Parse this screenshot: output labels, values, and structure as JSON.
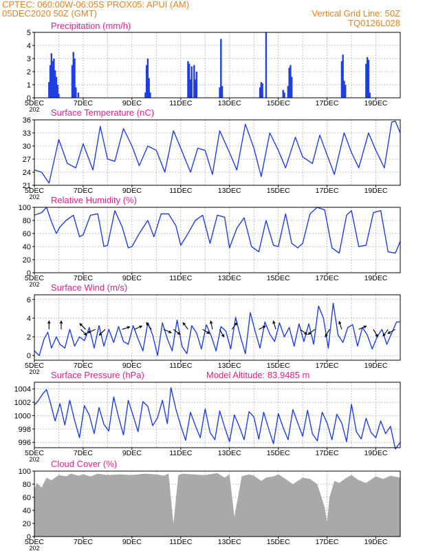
{
  "header": {
    "line1_left": "CPTEC:   060:00W-06:05S   PROX05: APUI (AM)",
    "line2_left": "05DEC2020 50Z (GMT)",
    "line2_right": "Vertical Grid Line: 50Z",
    "line3_right": "TQ0126L028"
  },
  "x_axis": {
    "tick_labels": [
      "5DEC",
      "7DEC",
      "9DEC",
      "11DEC",
      "13DEC",
      "15DEC",
      "17DEC",
      "19DEC"
    ],
    "range_days": [
      5,
      20
    ],
    "year_fragment": "202"
  },
  "colors": {
    "title": "#e0208c",
    "header": "#e8821e",
    "series": "#1f3fe0",
    "cloud": "#a9a9a9",
    "arrow": "#000000"
  },
  "chart_data": [
    {
      "type": "bar",
      "title": "Precipitation (mm/h)",
      "ylim": [
        0,
        5
      ],
      "yticks": [
        0,
        1,
        2,
        3,
        4,
        5
      ],
      "x": [
        5.6,
        5.65,
        5.7,
        5.75,
        5.8,
        5.85,
        5.9,
        5.95,
        6.0,
        6.55,
        6.6,
        6.65,
        6.7,
        6.8,
        9.55,
        9.6,
        9.65,
        9.7,
        9.75,
        11.3,
        11.35,
        11.4,
        11.45,
        11.55,
        11.6,
        11.65,
        12.6,
        12.65,
        12.7,
        14.25,
        14.3,
        14.35,
        14.5,
        15.2,
        15.25,
        15.4,
        15.45,
        15.5,
        15.55,
        17.6,
        17.65,
        17.7,
        17.75,
        18.6,
        18.65,
        18.7,
        18.75
      ],
      "values": [
        1.2,
        2.5,
        3.4,
        2.8,
        3.0,
        2.1,
        1.6,
        1.0,
        0.3,
        2.5,
        3.5,
        3.0,
        0.8,
        0.4,
        0.4,
        2.5,
        3.0,
        1.5,
        0.4,
        2.8,
        2.6,
        1.4,
        2.4,
        2.5,
        1.4,
        2.0,
        0.8,
        4.5,
        0.9,
        0.8,
        1.2,
        1.1,
        5.0,
        0.6,
        0.4,
        0.9,
        2.3,
        2.5,
        1.6,
        2.8,
        3.3,
        1.3,
        1.0,
        2.6,
        3.1,
        2.9,
        0.4
      ]
    },
    {
      "type": "line",
      "title": "Surface Temperature (nC)",
      "ylim": [
        21,
        36
      ],
      "yticks": [
        21,
        24,
        27,
        30,
        33,
        36
      ],
      "x": [
        5.0,
        5.3,
        5.6,
        6.0,
        6.35,
        6.7,
        7.0,
        7.4,
        7.7,
        8.0,
        8.3,
        8.65,
        9.0,
        9.3,
        9.65,
        10.0,
        10.35,
        10.7,
        11.0,
        11.4,
        11.7,
        12.0,
        12.3,
        12.6,
        13.0,
        13.3,
        13.65,
        14.0,
        14.3,
        14.65,
        15.0,
        15.3,
        15.7,
        16.0,
        16.4,
        16.7,
        17.0,
        17.3,
        17.7,
        18.0,
        18.3,
        18.7,
        19.0,
        19.35,
        19.65,
        19.8,
        20.0
      ],
      "values": [
        24.5,
        24,
        21.5,
        31.5,
        26,
        25,
        30.5,
        24.5,
        34.5,
        27,
        26.5,
        34,
        30,
        25.5,
        30,
        29,
        24,
        33.5,
        29.5,
        24,
        29.5,
        29,
        23.5,
        33.5,
        28.5,
        24.5,
        35,
        29.5,
        23,
        33,
        29,
        25,
        32,
        27.5,
        26,
        32.5,
        28,
        23.5,
        33,
        28.5,
        25,
        33,
        29,
        25,
        35.5,
        35.7,
        33
      ]
    },
    {
      "type": "line",
      "title": "Relative Humidity (%)",
      "ylim": [
        0,
        100
      ],
      "yticks": [
        0,
        20,
        40,
        60,
        80,
        100
      ],
      "x": [
        5.0,
        5.3,
        5.5,
        5.7,
        5.9,
        6.05,
        6.3,
        6.6,
        6.85,
        7.0,
        7.3,
        7.6,
        7.85,
        8.0,
        8.3,
        8.6,
        8.85,
        9.0,
        9.3,
        9.65,
        9.9,
        10.2,
        10.5,
        10.8,
        11.0,
        11.3,
        11.6,
        11.9,
        12.2,
        12.5,
        12.8,
        13.0,
        13.3,
        13.6,
        13.9,
        14.2,
        14.5,
        14.8,
        15.0,
        15.3,
        15.55,
        15.8,
        16.0,
        16.3,
        16.6,
        16.9,
        17.2,
        17.5,
        17.8,
        18.0,
        18.3,
        18.6,
        18.9,
        19.2,
        19.5,
        19.8,
        20.0
      ],
      "values": [
        88,
        92,
        100,
        78,
        60,
        70,
        80,
        88,
        55,
        58,
        88,
        90,
        40,
        42,
        95,
        70,
        38,
        40,
        60,
        80,
        55,
        90,
        90,
        72,
        42,
        60,
        80,
        88,
        45,
        88,
        85,
        38,
        68,
        84,
        40,
        32,
        80,
        42,
        40,
        90,
        45,
        38,
        45,
        90,
        100,
        96,
        38,
        30,
        88,
        95,
        40,
        42,
        92,
        95,
        32,
        30,
        48
      ]
    },
    {
      "type": "line",
      "title": "Surface Wind (m/s)",
      "ylim": [
        -0.5,
        6.5
      ],
      "yticks": [
        0,
        2,
        4,
        6
      ],
      "x": [
        5.0,
        5.2,
        5.4,
        5.55,
        5.7,
        5.9,
        6.05,
        6.25,
        6.45,
        6.65,
        6.85,
        7.05,
        7.25,
        7.45,
        7.65,
        7.85,
        8.05,
        8.25,
        8.45,
        8.65,
        8.85,
        9.05,
        9.25,
        9.45,
        9.65,
        9.85,
        10.05,
        10.25,
        10.45,
        10.65,
        10.85,
        11.05,
        11.25,
        11.45,
        11.65,
        11.85,
        12.05,
        12.25,
        12.45,
        12.65,
        12.85,
        13.05,
        13.25,
        13.45,
        13.65,
        13.85,
        14.05,
        14.25,
        14.45,
        14.65,
        14.85,
        15.05,
        15.25,
        15.45,
        15.65,
        15.85,
        16.05,
        16.25,
        16.45,
        16.65,
        16.85,
        17.05,
        17.25,
        17.45,
        17.65,
        17.85,
        18.05,
        18.25,
        18.45,
        18.65,
        18.85,
        19.05,
        19.25,
        19.45,
        19.65,
        19.85,
        20.0
      ],
      "values": [
        0.5,
        0,
        1.8,
        2.5,
        0.8,
        2,
        1.2,
        0.8,
        2.8,
        1,
        2,
        1.6,
        3,
        0.8,
        3.2,
        1,
        2.8,
        1.4,
        3.1,
        1.5,
        1.2,
        3.2,
        1.8,
        0.5,
        3.5,
        2.2,
        0,
        3.5,
        1.8,
        0.5,
        3.8,
        1,
        0.2,
        3.2,
        2.4,
        0.7,
        3.3,
        2.1,
        0.5,
        3.1,
        2.6,
        0.7,
        4.1,
        2,
        0.2,
        4.6,
        2.6,
        0.8,
        3.6,
        2.3,
        1.5,
        3.5,
        2,
        3,
        1,
        3.4,
        1.5,
        3.4,
        1.2,
        5.3,
        4,
        0.8,
        5.6,
        2.2,
        1.4,
        3,
        3.3,
        1,
        3,
        2.2,
        0.7,
        2,
        2.8,
        1.2,
        2.4,
        3.6,
        3.6
      ],
      "arrows": [
        {
          "x": 5.6,
          "u": 0,
          "v": 1
        },
        {
          "x": 6.1,
          "u": 0,
          "v": 1
        },
        {
          "x": 6.9,
          "u": 0.7,
          "v": -0.7
        },
        {
          "x": 7.1,
          "u": -0.7,
          "v": 0.7
        },
        {
          "x": 7.5,
          "u": -0.9,
          "v": -0.4
        },
        {
          "x": 7.9,
          "u": -0.7,
          "v": -0.7
        },
        {
          "x": 8.6,
          "u": 0.9,
          "v": 0.3
        },
        {
          "x": 9.1,
          "u": 0.9,
          "v": 0.4
        },
        {
          "x": 9.8,
          "u": -0.6,
          "v": 0.8
        },
        {
          "x": 10.3,
          "u": 0.9,
          "v": -0.4
        },
        {
          "x": 10.7,
          "u": 0.8,
          "v": -0.6
        },
        {
          "x": 11.3,
          "u": -0.6,
          "v": 0.8
        },
        {
          "x": 11.9,
          "u": 0.8,
          "v": -0.5
        },
        {
          "x": 12.3,
          "u": -0.2,
          "v": 1
        },
        {
          "x": 12.6,
          "u": 0.5,
          "v": -0.9
        },
        {
          "x": 13.1,
          "u": 0.6,
          "v": 0.8
        },
        {
          "x": 14.2,
          "u": 0.8,
          "v": 0.4
        },
        {
          "x": 14.9,
          "u": -0.3,
          "v": 1
        },
        {
          "x": 15.9,
          "u": 0.8,
          "v": -0.6
        },
        {
          "x": 16.5,
          "u": -0.8,
          "v": -0.6
        },
        {
          "x": 17.1,
          "u": -0.5,
          "v": -0.9
        },
        {
          "x": 17.6,
          "u": -0.3,
          "v": 0.95
        },
        {
          "x": 18.3,
          "u": 0.9,
          "v": 0.4
        },
        {
          "x": 18.9,
          "u": 0.5,
          "v": -0.9
        },
        {
          "x": 19.5,
          "u": -0.6,
          "v": -0.8
        },
        {
          "x": 19.8,
          "u": -0.9,
          "v": -0.5
        }
      ]
    },
    {
      "type": "line",
      "title": "Surface Pressure (hPa)",
      "annotation": "Model Altitude: 83.9485  m",
      "ylim": [
        995.2,
        1005
      ],
      "yticks": [
        996,
        998,
        1000,
        1002,
        1004
      ],
      "x": [
        5.0,
        5.15,
        5.35,
        5.5,
        5.65,
        5.85,
        6.05,
        6.25,
        6.45,
        6.65,
        6.85,
        7.05,
        7.25,
        7.45,
        7.65,
        7.85,
        8.05,
        8.25,
        8.45,
        8.65,
        8.85,
        9.05,
        9.25,
        9.45,
        9.65,
        9.85,
        10.05,
        10.25,
        10.45,
        10.6,
        10.8,
        11.0,
        11.2,
        11.4,
        11.6,
        11.8,
        12.0,
        12.2,
        12.4,
        12.6,
        12.8,
        13.0,
        13.2,
        13.4,
        13.6,
        13.8,
        14.0,
        14.2,
        14.4,
        14.6,
        14.8,
        15.0,
        15.2,
        15.4,
        15.6,
        15.8,
        16.0,
        16.2,
        16.4,
        16.6,
        16.8,
        17.0,
        17.2,
        17.4,
        17.6,
        17.8,
        18.0,
        18.2,
        18.4,
        18.6,
        18.8,
        19.0,
        19.2,
        19.4,
        19.6,
        19.8,
        20.0
      ],
      "values": [
        1001.6,
        1002.2,
        1003.3,
        1003.9,
        1002,
        999.2,
        1001.8,
        998.6,
        1002.3,
        999.3,
        996.7,
        1001.5,
        1000.1,
        997.3,
        1001.2,
        998.7,
        997.7,
        1002.8,
        999.8,
        997.1,
        1002.3,
        1000,
        997.6,
        1002.1,
        1001.4,
        998.5,
        999.7,
        1002.3,
        998.8,
        1004.2,
        1001,
        998.5,
        996.3,
        1000.5,
        998.5,
        996.7,
        1001,
        997.5,
        996.4,
        1000.7,
        998.3,
        996.1,
        1000.1,
        998.4,
        996.4,
        1000.6,
        999.8,
        996.5,
        1000.5,
        998.1,
        995.8,
        1000.3,
        998.2,
        996.4,
        1000.9,
        998.9,
        996.9,
        1000.8,
        997.3,
        996.2,
        1000.5,
        998.9,
        996.4,
        1000.2,
        998.9,
        996.1,
        1001.7,
        997.6,
        996.5,
        999.6,
        997.5,
        996.7,
        999.2,
        997.3,
        998.4,
        995,
        996
      ]
    },
    {
      "type": "area",
      "title": "Cloud Cover (%)",
      "ylim": [
        0,
        100
      ],
      "yticks": [
        0,
        20,
        40,
        60,
        80,
        100
      ],
      "x": [
        5.0,
        5.1,
        5.3,
        5.5,
        5.7,
        6.0,
        6.3,
        6.5,
        6.8,
        7.0,
        7.3,
        7.6,
        8.0,
        8.5,
        9.0,
        9.5,
        10.0,
        10.3,
        10.5,
        10.7,
        10.9,
        11.1,
        11.5,
        12.0,
        12.5,
        12.8,
        13.0,
        13.2,
        13.5,
        13.8,
        14.0,
        14.3,
        14.5,
        14.8,
        15.0,
        15.3,
        15.6,
        16.0,
        16.3,
        16.6,
        16.9,
        17.0,
        17.1,
        17.3,
        17.5,
        17.8,
        18.0,
        18.3,
        18.6,
        19.0,
        19.3,
        19.6,
        20.0
      ],
      "values": [
        72,
        82,
        75,
        90,
        86,
        94,
        92,
        96,
        93,
        95,
        92,
        96,
        94,
        95,
        94,
        96,
        95,
        93,
        96,
        20,
        94,
        96,
        95,
        94,
        97,
        90,
        95,
        30,
        92,
        95,
        93,
        85,
        90,
        92,
        95,
        88,
        80,
        90,
        88,
        80,
        45,
        22,
        60,
        85,
        82,
        90,
        94,
        86,
        82,
        92,
        88,
        93,
        90
      ]
    }
  ]
}
